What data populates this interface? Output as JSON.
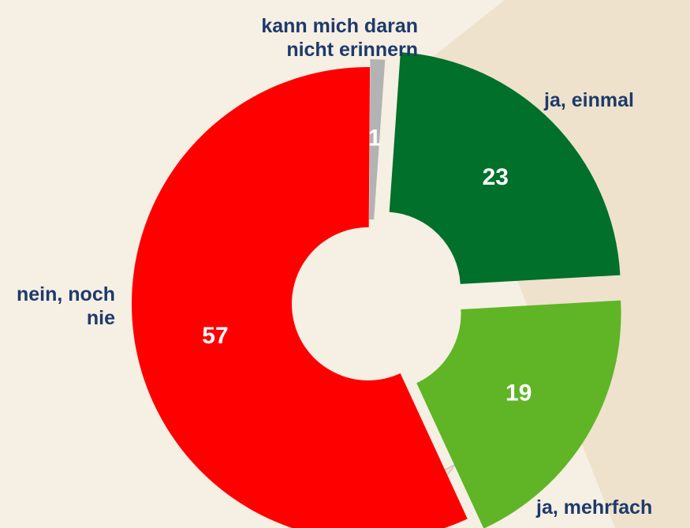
{
  "chart_data": {
    "type": "donut",
    "categories": [
      "ja, einmal",
      "ja, mehrfach",
      "nein, noch nie",
      "kann mich daran nicht erinnern"
    ],
    "values": [
      23,
      19,
      57,
      1
    ],
    "colors": [
      "#00702a",
      "#5fb526",
      "#ff0000",
      "#b3b3b3"
    ]
  }
}
